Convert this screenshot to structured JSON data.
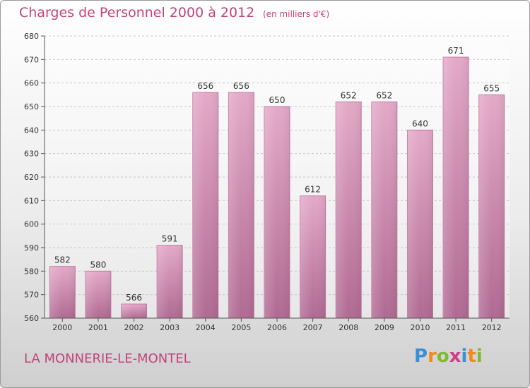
{
  "header": {
    "title": "Charges de Personnel 2000 à 2012",
    "subtitle": "(en milliers d'€)"
  },
  "footer": {
    "commune": "LA MONNERIE-LE-MONTEL",
    "logo_letters": [
      "P",
      "r",
      "o",
      "x",
      "i",
      "t",
      "i"
    ],
    "logo_colors": [
      "#3a8fd6",
      "#f08a1c",
      "#7dbb32",
      "#d33c8a",
      "#3a8fd6",
      "#f08a1c",
      "#7dbb32"
    ]
  },
  "chart_data": {
    "type": "bar",
    "categories": [
      "2000",
      "2001",
      "2002",
      "2003",
      "2004",
      "2005",
      "2006",
      "2007",
      "2008",
      "2009",
      "2010",
      "2011",
      "2012"
    ],
    "values": [
      582,
      580,
      566,
      591,
      656,
      656,
      650,
      612,
      652,
      652,
      640,
      671,
      655
    ],
    "title": "Charges de Personnel 2000 à 2012",
    "ylim": [
      560,
      680
    ],
    "yticks": [
      560,
      570,
      580,
      590,
      600,
      610,
      620,
      630,
      640,
      650,
      660,
      670,
      680
    ],
    "grid": true,
    "bar_color": "#d88ab4"
  }
}
